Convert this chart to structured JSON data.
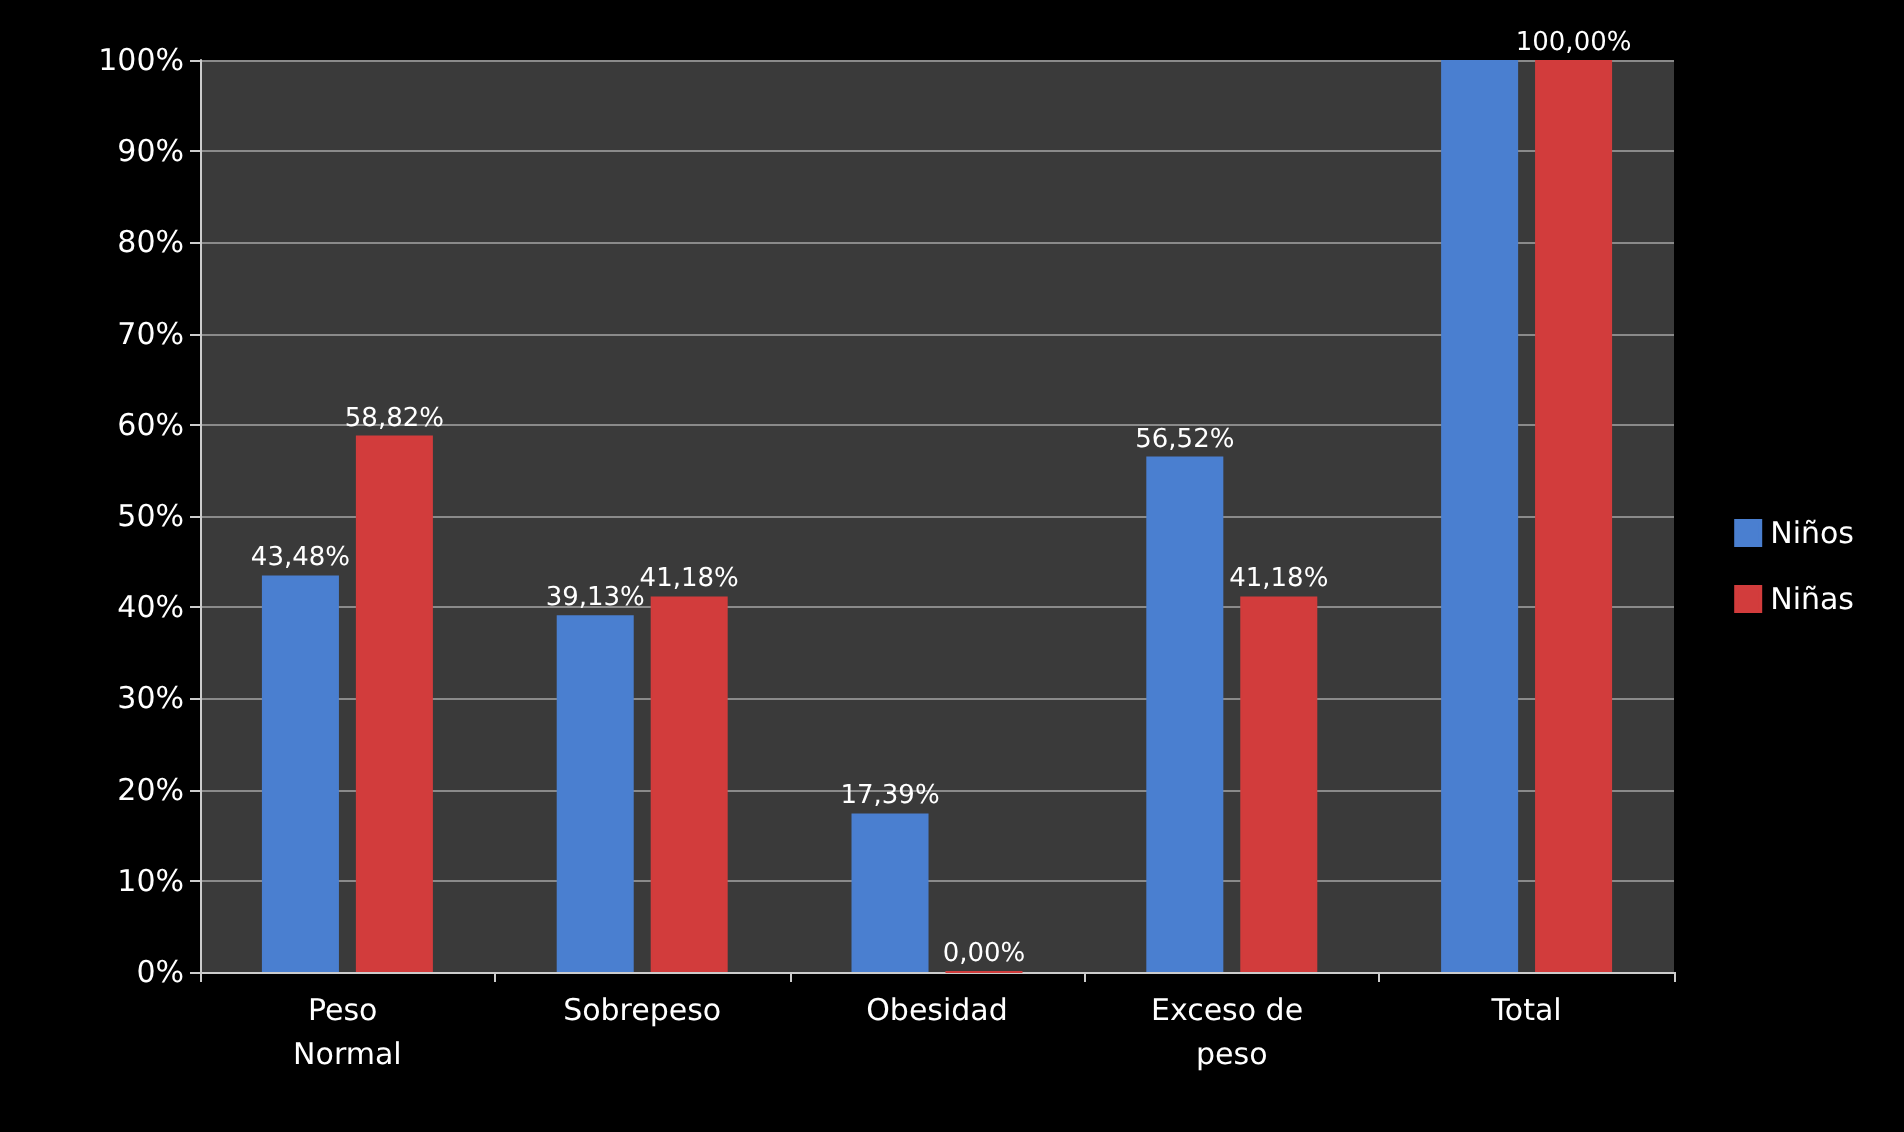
{
  "chart_data": {
    "type": "bar",
    "categories": [
      "Peso Normal",
      "Sobrepeso",
      "Obesidad",
      "Exceso de peso",
      "Total"
    ],
    "series": [
      {
        "name": "Niños",
        "color": "#4a7fd0",
        "values": [
          43.48,
          39.13,
          17.39,
          56.52,
          100
        ],
        "value_labels": [
          "43,48%",
          "39,13%",
          "17,39%",
          "56,52%",
          null
        ]
      },
      {
        "name": "Niñas",
        "color": "#d23c3c",
        "values": [
          58.82,
          41.18,
          0,
          41.18,
          100
        ],
        "value_labels": [
          "58,82%",
          "41,18%",
          "0,00%",
          "41,18%",
          "100,00%"
        ]
      }
    ],
    "ylim": [
      0,
      100
    ],
    "yticks": [
      {
        "value": 0,
        "label": "0%"
      },
      {
        "value": 10,
        "label": "10%"
      },
      {
        "value": 20,
        "label": "20%"
      },
      {
        "value": 30,
        "label": "30%"
      },
      {
        "value": 40,
        "label": "40%"
      },
      {
        "value": 50,
        "label": "50%"
      },
      {
        "value": 60,
        "label": "60%"
      },
      {
        "value": 70,
        "label": "70%"
      },
      {
        "value": 80,
        "label": "80%"
      },
      {
        "value": 90,
        "label": "90%"
      },
      {
        "value": 100,
        "label": "100%"
      }
    ],
    "grid": "y",
    "legend": "right"
  }
}
